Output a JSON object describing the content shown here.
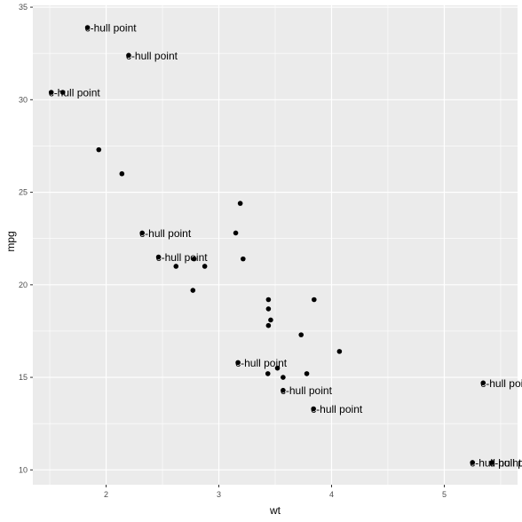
{
  "chart_data": {
    "type": "scatter",
    "xlabel": "wt",
    "ylabel": "mpg",
    "xlim": [
      1.35,
      5.65
    ],
    "ylim": [
      9.2,
      35.1
    ],
    "x_ticks": [
      2,
      3,
      4,
      5
    ],
    "y_ticks": [
      10,
      15,
      20,
      25,
      30,
      35
    ],
    "x_minor": [
      1.5,
      2.5,
      3.5,
      4.5,
      5.5
    ],
    "y_minor": [
      12.5,
      17.5,
      22.5,
      27.5,
      32.5
    ],
    "grid": true,
    "colors": {
      "panel": "#ebebeb",
      "grid": "#ffffff",
      "point": "#000000",
      "tick": "#333333"
    },
    "points": [
      {
        "x": 2.62,
        "y": 21.0,
        "label": ""
      },
      {
        "x": 2.875,
        "y": 21.0,
        "label": ""
      },
      {
        "x": 2.32,
        "y": 22.8,
        "label": "c-hull point"
      },
      {
        "x": 3.215,
        "y": 21.4,
        "label": ""
      },
      {
        "x": 3.44,
        "y": 18.7,
        "label": ""
      },
      {
        "x": 3.46,
        "y": 18.1,
        "label": ""
      },
      {
        "x": 3.57,
        "y": 14.3,
        "label": "c-hull point"
      },
      {
        "x": 3.19,
        "y": 24.4,
        "label": ""
      },
      {
        "x": 3.15,
        "y": 22.8,
        "label": ""
      },
      {
        "x": 3.44,
        "y": 19.2,
        "label": ""
      },
      {
        "x": 3.44,
        "y": 17.8,
        "label": ""
      },
      {
        "x": 4.07,
        "y": 16.4,
        "label": ""
      },
      {
        "x": 3.73,
        "y": 17.3,
        "label": ""
      },
      {
        "x": 3.78,
        "y": 15.2,
        "label": ""
      },
      {
        "x": 5.25,
        "y": 10.4,
        "label": "c-hull point"
      },
      {
        "x": 5.424,
        "y": 10.4,
        "label": "c-hull point"
      },
      {
        "x": 5.345,
        "y": 14.7,
        "label": "c-hull point"
      },
      {
        "x": 2.2,
        "y": 32.4,
        "label": "c-hull point"
      },
      {
        "x": 1.615,
        "y": 30.4,
        "label": ""
      },
      {
        "x": 1.835,
        "y": 33.9,
        "label": "c-hull point"
      },
      {
        "x": 2.465,
        "y": 21.5,
        "label": "c-hull point"
      },
      {
        "x": 3.52,
        "y": 15.5,
        "label": ""
      },
      {
        "x": 3.435,
        "y": 15.2,
        "label": ""
      },
      {
        "x": 3.84,
        "y": 13.3,
        "label": "c-hull point"
      },
      {
        "x": 3.845,
        "y": 19.2,
        "label": ""
      },
      {
        "x": 1.935,
        "y": 27.3,
        "label": ""
      },
      {
        "x": 2.14,
        "y": 26.0,
        "label": ""
      },
      {
        "x": 1.513,
        "y": 30.4,
        "label": "c-hull point"
      },
      {
        "x": 3.17,
        "y": 15.8,
        "label": "c-hull point"
      },
      {
        "x": 2.77,
        "y": 19.7,
        "label": ""
      },
      {
        "x": 3.57,
        "y": 15.0,
        "label": ""
      },
      {
        "x": 2.78,
        "y": 21.4,
        "label": ""
      }
    ]
  }
}
